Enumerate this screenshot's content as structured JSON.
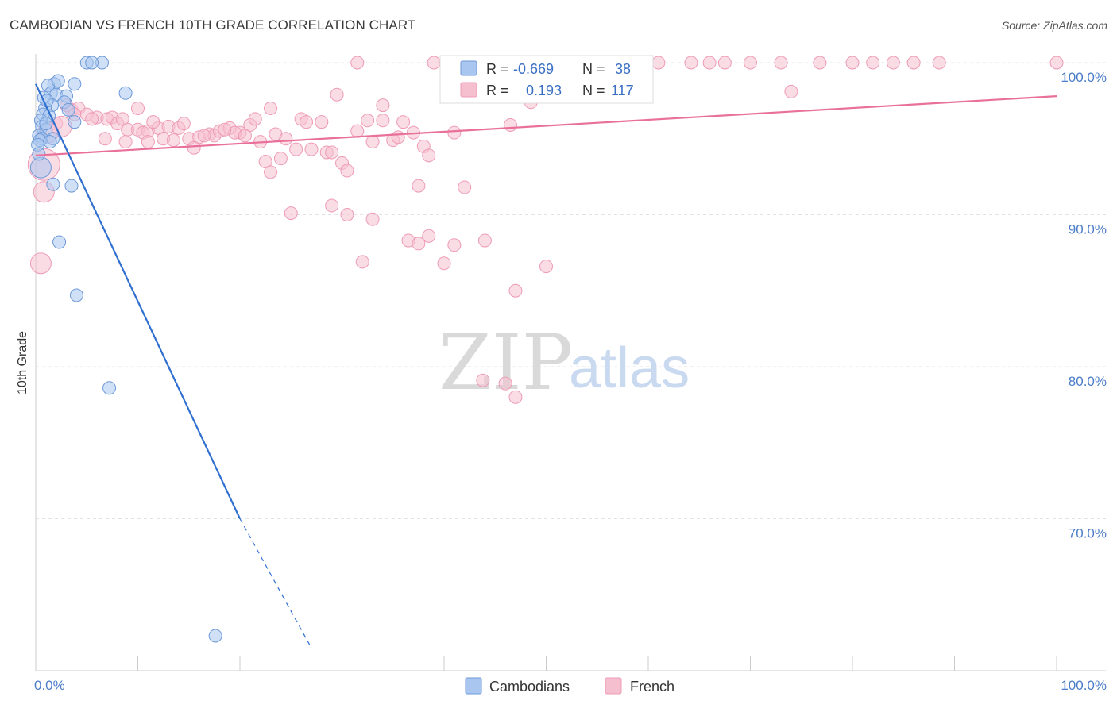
{
  "title": "CAMBODIAN VS FRENCH 10TH GRADE CORRELATION CHART",
  "source": "Source: ZipAtlas.com",
  "watermark": {
    "zip": "ZIP",
    "atlas": "atlas"
  },
  "colors": {
    "blue_fill": "#a9c6f0",
    "blue_stroke": "#6e9ad8",
    "blue_line": "#2f6fd0",
    "pink_fill": "#f6bfd0",
    "pink_stroke": "#ee9bb6",
    "pink_line": "#e8709a",
    "grid": "#e3e3e3",
    "axis_text": "#4a7cc9"
  },
  "legend": {
    "rows": [
      {
        "r_label": "R =",
        "r_value": "-0.669",
        "n_label": "N =",
        "n_value": "38"
      },
      {
        "r_label": "R =",
        "r_value": "0.193",
        "n_label": "N =",
        "n_value": "117"
      }
    ],
    "bottom": [
      "Cambodians",
      "French"
    ]
  },
  "chart_data": {
    "type": "scatter",
    "title": "CAMBODIAN VS FRENCH 10TH GRADE CORRELATION CHART",
    "xlabel": "",
    "ylabel": "10th Grade",
    "xlim": [
      0,
      100
    ],
    "ylim": [
      61.5,
      101.5
    ],
    "x_tick_labels": [
      "0.0%",
      "100.0%"
    ],
    "y_ticks": [
      70,
      80,
      90,
      100
    ],
    "y_tick_labels": [
      "70.0%",
      "80.0%",
      "90.0%",
      "100.0%"
    ],
    "series": [
      {
        "name": "Cambodians",
        "r": -0.669,
        "n": 38,
        "trend": {
          "x0": 0.0,
          "y0": 98.6,
          "x1": 20.0,
          "y1": 70.0,
          "dash_x1": 27.0,
          "dash_y1": 61.5
        },
        "points": [
          [
            5.0,
            100.0,
            1
          ],
          [
            6.5,
            100.0,
            1
          ],
          [
            5.5,
            100.0,
            1
          ],
          [
            1.8,
            98.6,
            1
          ],
          [
            3.8,
            98.6,
            1
          ],
          [
            1.2,
            98.5,
            1
          ],
          [
            2.2,
            98.8,
            1
          ],
          [
            1.5,
            98.0,
            1
          ],
          [
            0.8,
            97.7,
            1
          ],
          [
            2.0,
            97.9,
            1
          ],
          [
            3.0,
            97.8,
            1
          ],
          [
            8.8,
            98.0,
            1
          ],
          [
            2.8,
            97.4,
            1
          ],
          [
            1.6,
            97.2,
            1
          ],
          [
            0.9,
            97.0,
            1
          ],
          [
            3.2,
            96.9,
            1
          ],
          [
            0.7,
            96.6,
            1
          ],
          [
            1.3,
            96.5,
            1
          ],
          [
            0.5,
            96.2,
            1
          ],
          [
            3.8,
            96.1,
            1
          ],
          [
            0.6,
            95.8,
            1
          ],
          [
            1.0,
            95.6,
            1
          ],
          [
            0.3,
            95.2,
            1
          ],
          [
            0.6,
            95.0,
            1
          ],
          [
            1.7,
            95.0,
            1
          ],
          [
            0.4,
            94.9,
            1
          ],
          [
            1.4,
            94.8,
            1
          ],
          [
            0.2,
            94.6,
            1
          ],
          [
            0.5,
            93.1,
            2
          ],
          [
            1.7,
            92.0,
            1
          ],
          [
            3.5,
            91.9,
            1
          ],
          [
            2.3,
            88.2,
            1
          ],
          [
            4.0,
            84.7,
            1
          ],
          [
            7.2,
            78.6,
            1
          ],
          [
            17.6,
            62.3,
            1
          ],
          [
            1.0,
            96.0,
            1
          ],
          [
            0.3,
            94.0,
            1
          ],
          [
            1.1,
            97.5,
            1
          ]
        ]
      },
      {
        "name": "French",
        "r": 0.193,
        "n": 117,
        "trend": {
          "x0": 0.0,
          "y0": 93.9,
          "x1": 100.0,
          "y1": 97.8
        },
        "points": [
          [
            31.5,
            100,
            1
          ],
          [
            39.0,
            100,
            1
          ],
          [
            40.2,
            100,
            1
          ],
          [
            44.0,
            100,
            1
          ],
          [
            46.7,
            100,
            1
          ],
          [
            48.6,
            100,
            1
          ],
          [
            52.5,
            100,
            1
          ],
          [
            57.2,
            100,
            1
          ],
          [
            61.0,
            100,
            1
          ],
          [
            64.2,
            100,
            1
          ],
          [
            66.0,
            100,
            1
          ],
          [
            67.5,
            100,
            1
          ],
          [
            70.0,
            100,
            1
          ],
          [
            73.0,
            100,
            1
          ],
          [
            76.8,
            100,
            1
          ],
          [
            80.0,
            100,
            1
          ],
          [
            82.0,
            100,
            1
          ],
          [
            84.0,
            100,
            1
          ],
          [
            86.0,
            100,
            1
          ],
          [
            88.5,
            100,
            1
          ],
          [
            100.0,
            100,
            1
          ],
          [
            3.0,
            97.2,
            1
          ],
          [
            3.5,
            96.9,
            1
          ],
          [
            4.2,
            97.0,
            1
          ],
          [
            5.0,
            96.6,
            1
          ],
          [
            6.0,
            96.4,
            1
          ],
          [
            7.0,
            96.3,
            1
          ],
          [
            7.5,
            96.4,
            1
          ],
          [
            8.0,
            96.0,
            1
          ],
          [
            8.5,
            96.3,
            1
          ],
          [
            2.0,
            96.0,
            1
          ],
          [
            2.5,
            95.8,
            2
          ],
          [
            9.0,
            95.6,
            1
          ],
          [
            10.0,
            95.6,
            1
          ],
          [
            11.0,
            95.5,
            1
          ],
          [
            12.0,
            95.7,
            1
          ],
          [
            13.0,
            95.8,
            1
          ],
          [
            14.0,
            95.7,
            1
          ],
          [
            14.5,
            96.0,
            1
          ],
          [
            11.5,
            96.1,
            1
          ],
          [
            15.0,
            95.0,
            1
          ],
          [
            16.0,
            95.1,
            1
          ],
          [
            17.0,
            95.3,
            1
          ],
          [
            17.5,
            95.2,
            1
          ],
          [
            18.0,
            95.5,
            1
          ],
          [
            19.0,
            95.7,
            1
          ],
          [
            20.0,
            95.4,
            1
          ],
          [
            21.0,
            95.9,
            1
          ],
          [
            21.5,
            96.3,
            1
          ],
          [
            5.5,
            96.3,
            1
          ],
          [
            6.8,
            95.0,
            1
          ],
          [
            8.8,
            94.8,
            1
          ],
          [
            10.5,
            95.4,
            1
          ],
          [
            12.5,
            95.0,
            1
          ],
          [
            13.5,
            94.9,
            1
          ],
          [
            15.5,
            94.4,
            1
          ],
          [
            22.0,
            94.8,
            1
          ],
          [
            23.5,
            95.3,
            1
          ],
          [
            24.5,
            95.0,
            1
          ],
          [
            25.5,
            94.3,
            1
          ],
          [
            26.0,
            96.3,
            1
          ],
          [
            26.5,
            96.1,
            1
          ],
          [
            28.0,
            96.1,
            1
          ],
          [
            28.5,
            94.1,
            1
          ],
          [
            29.0,
            94.1,
            1
          ],
          [
            30.0,
            93.4,
            1
          ],
          [
            30.5,
            92.9,
            1
          ],
          [
            33.0,
            94.8,
            1
          ],
          [
            34.0,
            96.2,
            1
          ],
          [
            35.0,
            94.9,
            1
          ],
          [
            35.5,
            95.1,
            1
          ],
          [
            36.0,
            96.1,
            1
          ],
          [
            37.0,
            95.4,
            1
          ],
          [
            38.0,
            94.5,
            1
          ],
          [
            38.5,
            93.9,
            1
          ],
          [
            31.5,
            95.5,
            1
          ],
          [
            23.0,
            97.0,
            1
          ],
          [
            22.5,
            93.5,
            1
          ],
          [
            23.0,
            92.8,
            1
          ],
          [
            24.0,
            93.7,
            1
          ],
          [
            10.0,
            97.0,
            1
          ],
          [
            29.5,
            97.9,
            1
          ],
          [
            34.0,
            97.2,
            1
          ],
          [
            41.0,
            95.4,
            1
          ],
          [
            46.5,
            95.9,
            1
          ],
          [
            32.5,
            96.2,
            1
          ],
          [
            25.0,
            90.1,
            1
          ],
          [
            29.0,
            90.6,
            1
          ],
          [
            30.5,
            90.0,
            1
          ],
          [
            33.0,
            89.7,
            1
          ],
          [
            37.5,
            91.9,
            1
          ],
          [
            42.0,
            91.8,
            1
          ],
          [
            36.5,
            88.3,
            1
          ],
          [
            37.5,
            88.1,
            1
          ],
          [
            38.5,
            88.6,
            1
          ],
          [
            41.0,
            88.0,
            1
          ],
          [
            44.0,
            88.3,
            1
          ],
          [
            32.0,
            86.9,
            1
          ],
          [
            40.0,
            86.8,
            1
          ],
          [
            50.0,
            86.6,
            1
          ],
          [
            0.5,
            86.8,
            2
          ],
          [
            47.0,
            85.0,
            1
          ],
          [
            43.8,
            79.1,
            1
          ],
          [
            46.0,
            78.9,
            1
          ],
          [
            47.0,
            78.0,
            1
          ],
          [
            48.5,
            97.4,
            1
          ],
          [
            74.0,
            98.1,
            1
          ],
          [
            0.8,
            93.3,
            3
          ],
          [
            0.8,
            91.5,
            2
          ],
          [
            1.2,
            95.4,
            2
          ],
          [
            3.8,
            96.6,
            1
          ],
          [
            11.0,
            94.8,
            1
          ],
          [
            19.5,
            95.4,
            1
          ],
          [
            16.5,
            95.2,
            1
          ],
          [
            18.5,
            95.6,
            1
          ],
          [
            20.5,
            95.2,
            1
          ],
          [
            27.0,
            94.3,
            1
          ]
        ]
      }
    ]
  }
}
